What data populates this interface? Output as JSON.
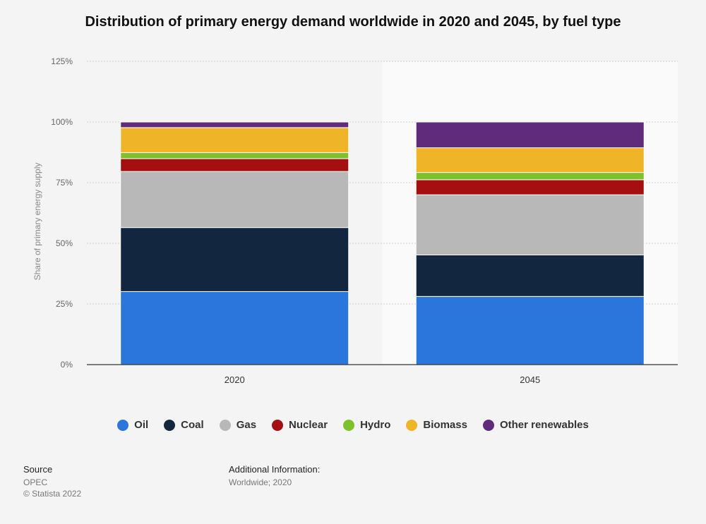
{
  "chart_data": {
    "type": "bar",
    "stacked": true,
    "title": "Distribution of primary energy demand worldwide in 2020 and 2045, by fuel type",
    "xlabel": "",
    "ylabel": "Share of primary energy supply",
    "ylim": [
      0,
      125
    ],
    "yticks": [
      0,
      25,
      50,
      75,
      100,
      125
    ],
    "ytick_labels": [
      "0%",
      "25%",
      "50%",
      "75%",
      "100%",
      "125%"
    ],
    "categories": [
      "2020",
      "2045"
    ],
    "series": [
      {
        "name": "Oil",
        "color": "#2a76dd",
        "values": [
          30.1,
          28.1
        ]
      },
      {
        "name": "Coal",
        "color": "#13263f",
        "values": [
          26.4,
          17.1
        ]
      },
      {
        "name": "Gas",
        "color": "#b8b8b8",
        "values": [
          23.1,
          24.8
        ]
      },
      {
        "name": "Nuclear",
        "color": "#a50f0f",
        "values": [
          5.3,
          6.2
        ]
      },
      {
        "name": "Hydro",
        "color": "#7dc22b",
        "values": [
          2.5,
          3.0
        ]
      },
      {
        "name": "Biomass",
        "color": "#f0b429",
        "values": [
          10.3,
          10.2
        ]
      },
      {
        "name": "Other renewables",
        "color": "#5f2b7a",
        "values": [
          2.3,
          10.6
        ]
      }
    ],
    "legend_position": "bottom"
  },
  "footer": {
    "source_heading": "Source",
    "source_lines": [
      "OPEC",
      "© Statista 2022"
    ],
    "info_heading": "Additional Information:",
    "info_lines": [
      "Worldwide; 2020"
    ]
  }
}
